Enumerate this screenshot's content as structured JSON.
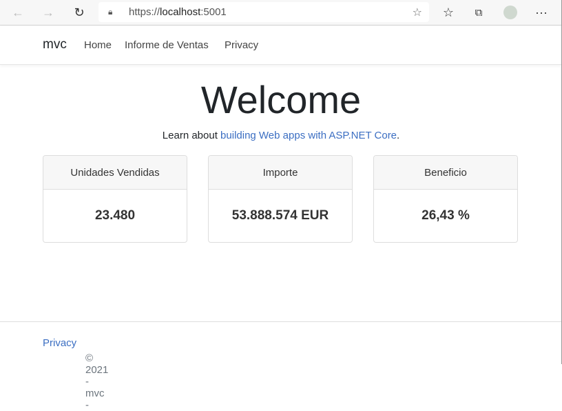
{
  "browser": {
    "url_prefix": "https://",
    "url_host": "localhost",
    "url_port": ":5001",
    "back": "←",
    "forward": "→",
    "reload": "↻",
    "more": "···"
  },
  "navbar": {
    "brand": "mvc",
    "links": [
      "Home",
      "Informe de Ventas",
      "Privacy"
    ]
  },
  "main": {
    "title": "Welcome",
    "lead_prefix": "Learn about ",
    "lead_link": "building Web apps with ASP.NET Core",
    "lead_suffix": ".",
    "cards": [
      {
        "header": "Unidades Vendidas",
        "value": "23.480"
      },
      {
        "header": "Importe",
        "value": "53.888.574 EUR"
      },
      {
        "header": "Beneficio",
        "value": "26,43 %"
      }
    ]
  },
  "footer": {
    "text": "© 2021 - mvc - ",
    "link": "Privacy"
  },
  "colors": {
    "link": "#3b6ec2"
  }
}
